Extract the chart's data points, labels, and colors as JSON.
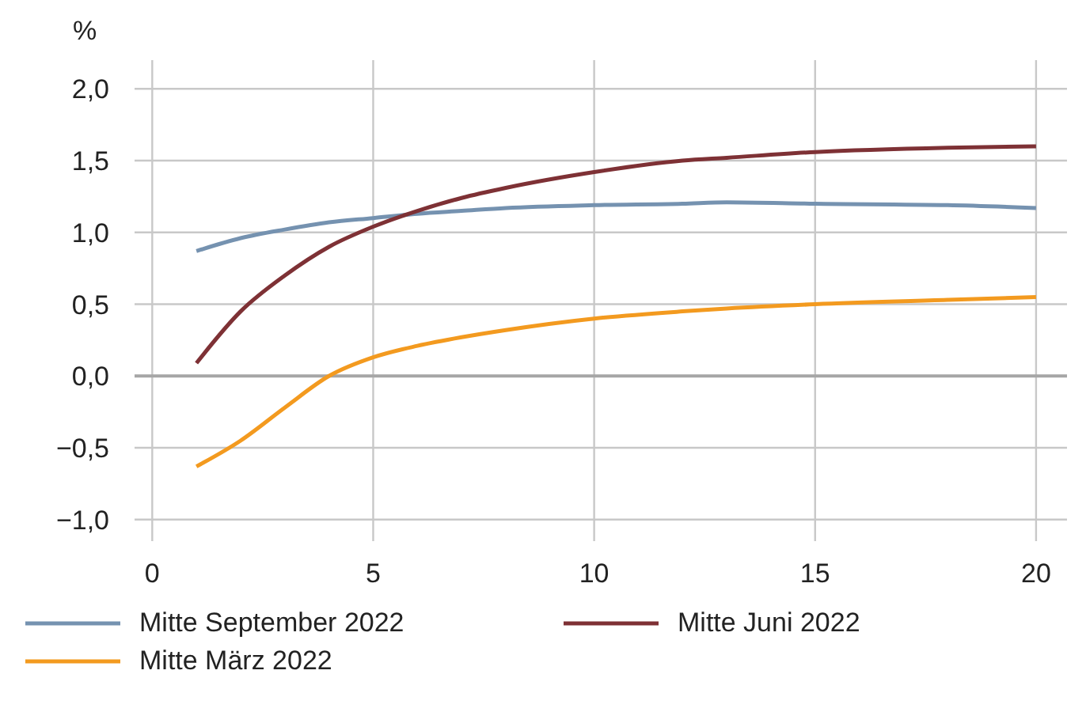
{
  "chart_data": {
    "type": "line",
    "ylabel": "%",
    "x": [
      1,
      2,
      3,
      4,
      5,
      6,
      7,
      8,
      10,
      12,
      13,
      15,
      18,
      20
    ],
    "series": [
      {
        "name": "Mitte September 2022",
        "color": "#7592b0",
        "values": [
          0.87,
          0.96,
          1.02,
          1.07,
          1.1,
          1.13,
          1.15,
          1.17,
          1.19,
          1.2,
          1.21,
          1.2,
          1.19,
          1.17
        ]
      },
      {
        "name": "Mitte Juni 2022",
        "color": "#7e3135",
        "values": [
          0.09,
          0.45,
          0.7,
          0.9,
          1.04,
          1.15,
          1.24,
          1.31,
          1.42,
          1.5,
          1.52,
          1.56,
          1.59,
          1.6
        ]
      },
      {
        "name": "Mitte März 2022",
        "color": "#f39a1f",
        "values": [
          -0.63,
          -0.45,
          -0.22,
          0.0,
          0.13,
          0.21,
          0.27,
          0.32,
          0.4,
          0.45,
          0.47,
          0.5,
          0.53,
          0.55
        ]
      }
    ],
    "xlim": [
      -0.4,
      20.7
    ],
    "xticks": [
      0,
      5,
      10,
      15,
      20
    ],
    "ylim": [
      -1.15,
      2.2
    ],
    "yticks": [
      {
        "value": -1,
        "label": "−1,0"
      },
      {
        "value": -0.5,
        "label": "−0,5"
      },
      {
        "value": 0,
        "label": "0,0"
      },
      {
        "value": 0.5,
        "label": "0,5"
      },
      {
        "value": 1,
        "label": "1,0"
      },
      {
        "value": 1.5,
        "label": "1,5"
      },
      {
        "value": 2,
        "label": "2,0"
      }
    ],
    "ref_lines": [
      {
        "axis": "y",
        "value": 0,
        "color": "#a6a6a6"
      }
    ],
    "grid": true,
    "legend": "bottom",
    "marker": "none",
    "line_style": "solid"
  }
}
